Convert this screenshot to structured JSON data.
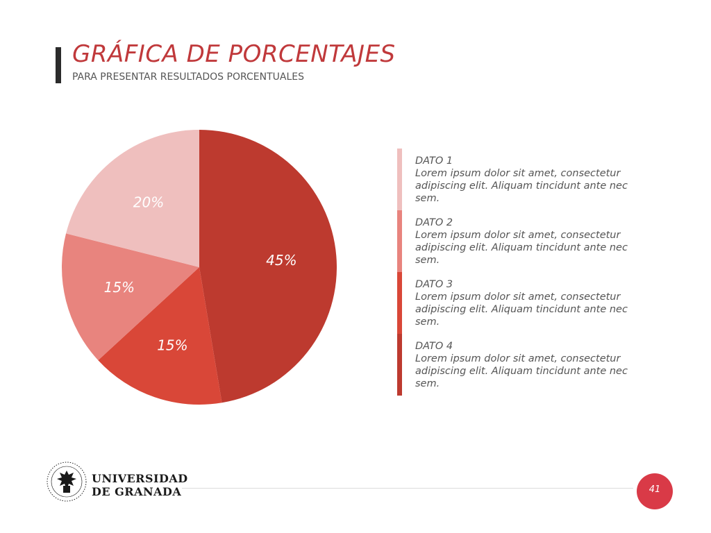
{
  "header": {
    "title": "GRÁFICA DE PORCENTAJES",
    "subtitle": "PARA PRESENTAR RESULTADOS PORCENTUALES"
  },
  "chart_data": {
    "type": "pie",
    "slices": [
      {
        "label": "DATO 4",
        "value": 45,
        "display": "45%",
        "color": "#bd3a2f"
      },
      {
        "label": "DATO 3",
        "value": 15,
        "display": "15%",
        "color": "#d94738"
      },
      {
        "label": "DATO 2",
        "value": 15,
        "display": "15%",
        "color": "#e8847e"
      },
      {
        "label": "DATO 1",
        "value": 20,
        "display": "20%",
        "color": "#efbfbe"
      }
    ],
    "start": "12 o'clock",
    "direction": "clockwise"
  },
  "legend": {
    "items": [
      {
        "label": "DATO 1",
        "text": "Lorem ipsum dolor sit amet, consectetur adipiscing elit. Aliquam tincidunt ante nec sem.",
        "color": "#efbfbe"
      },
      {
        "label": "DATO 2",
        "text": "Lorem ipsum dolor sit amet, consectetur adipiscing elit. Aliquam tincidunt ante nec sem.",
        "color": "#e8847e"
      },
      {
        "label": "DATO 3",
        "text": "Lorem ipsum dolor sit amet, consectetur adipiscing elit. Aliquam tincidunt ante nec sem.",
        "color": "#d94738"
      },
      {
        "label": "DATO 4",
        "text": "Lorem ipsum dolor sit amet, consectetur adipiscing elit. Aliquam tincidunt ante nec sem.",
        "color": "#bd3a2f"
      }
    ]
  },
  "footer": {
    "university_line1": "UNIVERSIDAD",
    "university_line2": "DE GRANADA",
    "logo_icon": "university-crest-icon",
    "page_number": "41",
    "badge_color": "#d93a47"
  }
}
